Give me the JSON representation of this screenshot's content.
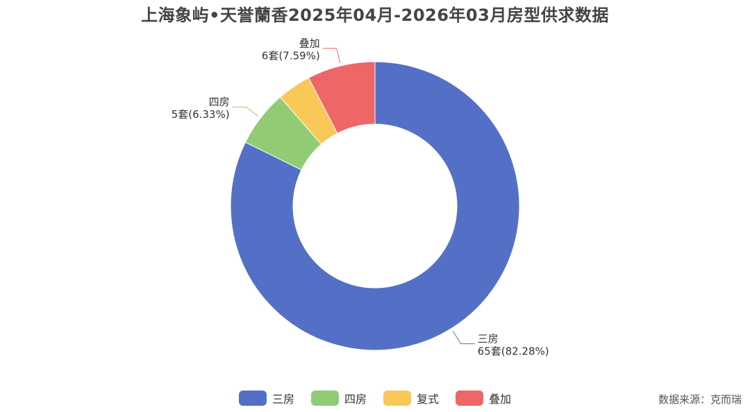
{
  "chart_data": {
    "type": "pie",
    "title": "上海象屿•天誉蘭香2025年04月-2026年03月房型供求数据",
    "slices": [
      {
        "name": "三房",
        "value": 65,
        "percent": "82.28%",
        "label_line1": "三房",
        "label_line2": "65套(82.28%)",
        "color": "#5470c6"
      },
      {
        "name": "四房",
        "value": 5,
        "percent": "6.33%",
        "label_line1": "四房",
        "label_line2": "5套(6.33%)",
        "color": "#91cc75"
      },
      {
        "name": "复式",
        "value": 3,
        "percent": "3.80%",
        "label_line1": "",
        "label_line2": "",
        "color": "#fac858"
      },
      {
        "name": "叠加",
        "value": 6,
        "percent": "7.59%",
        "label_line1": "叠加",
        "label_line2": "6套(7.59%)",
        "color": "#ee6666"
      }
    ],
    "legend_position": "bottom-center",
    "source": "数据来源：克而瑞"
  }
}
